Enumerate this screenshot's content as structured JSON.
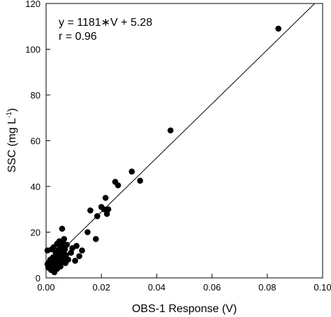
{
  "chart_data": {
    "type": "scatter",
    "xlabel": "OBS-1 Response (V)",
    "ylabel_main": "SSC (mg L",
    "ylabel_sup": "-1",
    "ylabel_close": ")",
    "xlim": [
      0,
      0.1
    ],
    "ylim": [
      0,
      120
    ],
    "x_ticks": [
      "0.00",
      "0.02",
      "0.04",
      "0.06",
      "0.08",
      "0.10"
    ],
    "y_ticks": [
      "0",
      "20",
      "40",
      "60",
      "80",
      "100",
      "120"
    ],
    "annotations": [
      "y = 1181∗V + 5.28",
      "r = 0.96"
    ],
    "fit_line": {
      "slope": 1181,
      "intercept": 5.28
    },
    "grid": false,
    "marker_color": "#000000",
    "points": [
      [
        0.0005,
        12
      ],
      [
        0.0005,
        6
      ],
      [
        0.0008,
        4.5
      ],
      [
        0.001,
        5
      ],
      [
        0.0012,
        7
      ],
      [
        0.0015,
        8
      ],
      [
        0.0015,
        5
      ],
      [
        0.0018,
        3.5
      ],
      [
        0.002,
        6
      ],
      [
        0.002,
        12.5
      ],
      [
        0.0022,
        4
      ],
      [
        0.0025,
        9
      ],
      [
        0.0025,
        5.5
      ],
      [
        0.0028,
        13.5
      ],
      [
        0.003,
        6.5
      ],
      [
        0.003,
        2.5
      ],
      [
        0.0032,
        8.5
      ],
      [
        0.0035,
        5
      ],
      [
        0.0035,
        11
      ],
      [
        0.0038,
        7
      ],
      [
        0.004,
        4
      ],
      [
        0.004,
        15
      ],
      [
        0.0042,
        9.5
      ],
      [
        0.0045,
        12
      ],
      [
        0.0045,
        6
      ],
      [
        0.0048,
        16
      ],
      [
        0.005,
        8
      ],
      [
        0.005,
        13
      ],
      [
        0.0052,
        5
      ],
      [
        0.0055,
        10
      ],
      [
        0.0055,
        14
      ],
      [
        0.0058,
        21.5
      ],
      [
        0.006,
        11.5
      ],
      [
        0.006,
        7
      ],
      [
        0.0062,
        15
      ],
      [
        0.0065,
        9
      ],
      [
        0.0065,
        17
      ],
      [
        0.0068,
        12.5
      ],
      [
        0.007,
        6.5
      ],
      [
        0.0072,
        10
      ],
      [
        0.0075,
        14.5
      ],
      [
        0.008,
        8
      ],
      [
        0.009,
        11
      ],
      [
        0.0095,
        13
      ],
      [
        0.0105,
        7.5
      ],
      [
        0.011,
        14
      ],
      [
        0.012,
        9.5
      ],
      [
        0.013,
        12
      ],
      [
        0.015,
        20
      ],
      [
        0.016,
        29.5
      ],
      [
        0.018,
        17
      ],
      [
        0.0185,
        27
      ],
      [
        0.02,
        31
      ],
      [
        0.021,
        30
      ],
      [
        0.0215,
        35
      ],
      [
        0.022,
        28
      ],
      [
        0.0225,
        30
      ],
      [
        0.025,
        42
      ],
      [
        0.026,
        40.5
      ],
      [
        0.031,
        46.5
      ],
      [
        0.034,
        42.5
      ],
      [
        0.045,
        64.5
      ],
      [
        0.084,
        109
      ]
    ]
  }
}
